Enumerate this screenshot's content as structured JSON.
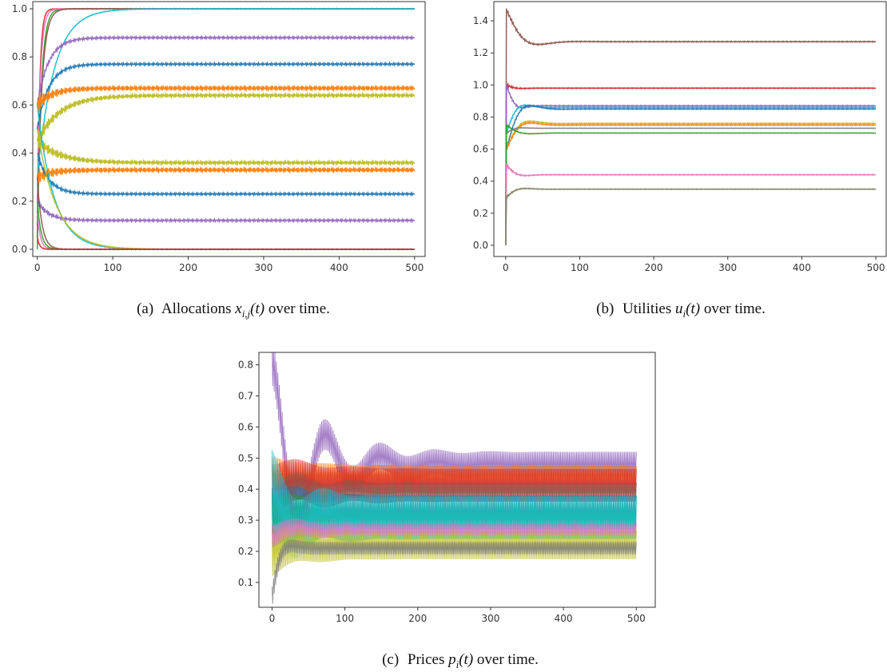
{
  "colors": [
    "#1f77b4",
    "#ff7f0e",
    "#2ca02c",
    "#d62728",
    "#9467bd",
    "#8c564b",
    "#e377c2",
    "#7f7f7f",
    "#bcbd22",
    "#17becf"
  ],
  "chart_data": [
    {
      "type": "line",
      "caption": "(a) Allocations x_{i,j}(t) over time.",
      "caption_parts": {
        "label": "(a)",
        "prefix": "Allocations ",
        "math_base": "x",
        "math_sub": "i,j",
        "math_arg": "(t)",
        "suffix": " over time."
      },
      "xlim": [
        -6,
        514
      ],
      "ylim": [
        -0.03,
        1.03
      ],
      "xticks": [
        0,
        100,
        200,
        300,
        400,
        500
      ],
      "yticks": [
        0.0,
        0.2,
        0.4,
        0.6,
        0.8,
        1.0
      ],
      "xtick_labels": [
        "0",
        "100",
        "200",
        "300",
        "400",
        "500"
      ],
      "ytick_labels": [
        "0.0",
        "0.2",
        "0.4",
        "0.6",
        "0.8",
        "1.0"
      ],
      "series": [
        {
          "color": "#d62728",
          "start": 0.05,
          "final": 1.0,
          "tau": 3,
          "osc": 0.003
        },
        {
          "color": "#2ca02c",
          "start": 0.0,
          "final": 1.0,
          "tau": 5,
          "osc": 0.003
        },
        {
          "color": "#e377c2",
          "start": 0.2,
          "final": 1.0,
          "tau": 4,
          "osc": 0.003
        },
        {
          "color": "#8c564b",
          "start": 0.1,
          "final": 1.0,
          "tau": 6,
          "osc": 0.003
        },
        {
          "color": "#17becf",
          "start": 0.3,
          "final": 1.0,
          "tau": 22,
          "osc": 0.003
        },
        {
          "color": "#9467bd",
          "start": 0.6,
          "final": 0.88,
          "tau": 15,
          "osc": 0.012
        },
        {
          "color": "#1f77b4",
          "start": 0.5,
          "final": 0.77,
          "tau": 15,
          "osc": 0.012
        },
        {
          "color": "#ff7f0e",
          "start": 0.6,
          "final": 0.67,
          "tau": 20,
          "osc": 0.025
        },
        {
          "color": "#bcbd22",
          "start": 0.45,
          "final": 0.64,
          "tau": 30,
          "osc": 0.02
        },
        {
          "color": "#bcbd22",
          "start": 0.45,
          "final": 0.36,
          "tau": 30,
          "osc": 0.02
        },
        {
          "color": "#ff7f0e",
          "start": 0.3,
          "final": 0.33,
          "tau": 20,
          "osc": 0.025
        },
        {
          "color": "#1f77b4",
          "start": 0.4,
          "final": 0.23,
          "tau": 15,
          "osc": 0.012
        },
        {
          "color": "#9467bd",
          "start": 0.2,
          "final": 0.12,
          "tau": 15,
          "osc": 0.012
        },
        {
          "color": "#17becf",
          "start": 0.6,
          "final": 0.0,
          "tau": 22,
          "osc": 0.003
        },
        {
          "color": "#bcbd22",
          "start": 0.5,
          "final": 0.0,
          "tau": 25,
          "osc": 0.003
        },
        {
          "color": "#8c564b",
          "start": 0.3,
          "final": 0.0,
          "tau": 6,
          "osc": 0.003
        },
        {
          "color": "#e377c2",
          "start": 0.15,
          "final": 0.0,
          "tau": 4,
          "osc": 0.003
        },
        {
          "color": "#2ca02c",
          "start": 0.2,
          "final": 0.0,
          "tau": 5,
          "osc": 0.003
        },
        {
          "color": "#d62728",
          "start": 0.05,
          "final": 0.0,
          "tau": 3,
          "osc": 0.003
        }
      ]
    },
    {
      "type": "line",
      "caption": "(b) Utilities u_i(t) over time.",
      "caption_parts": {
        "label": "(b)",
        "prefix": "Utilities ",
        "math_base": "u",
        "math_sub": "i",
        "math_arg": "(t)",
        "suffix": " over time."
      },
      "xlim": [
        -16,
        514
      ],
      "ylim": [
        -0.07,
        1.52
      ],
      "xticks": [
        0,
        100,
        200,
        300,
        400,
        500
      ],
      "yticks": [
        0.0,
        0.2,
        0.4,
        0.6,
        0.8,
        1.0,
        1.2,
        1.4
      ],
      "xtick_labels": [
        "0",
        "100",
        "200",
        "300",
        "400",
        "500"
      ],
      "ytick_labels": [
        "0.0",
        "0.2",
        "0.4",
        "0.6",
        "0.8",
        "1.0",
        "1.2",
        "1.4"
      ],
      "series": [
        {
          "color": "#8c564b",
          "start": 0.0,
          "peak": 1.47,
          "final": 1.27,
          "tau": 20,
          "osc": 0.01
        },
        {
          "color": "#d62728",
          "start": 0.0,
          "peak": 1.0,
          "final": 0.98,
          "tau": 10,
          "osc": 0.008
        },
        {
          "color": "#9467bd",
          "start": 0.0,
          "peak": 1.0,
          "final": 0.87,
          "tau": 10,
          "osc": 0.01
        },
        {
          "color": "#17becf",
          "start": 0.0,
          "peak": 0.7,
          "final": 0.86,
          "tau": 12,
          "osc": 0.008
        },
        {
          "color": "#1f77b4",
          "start": 0.0,
          "peak": 0.6,
          "final": 0.85,
          "tau": 15,
          "osc": 0.008
        },
        {
          "color": "#bcbd22",
          "start": 0.0,
          "peak": 0.6,
          "final": 0.76,
          "tau": 15,
          "osc": 0.008
        },
        {
          "color": "#ff7f0e",
          "start": 0.0,
          "peak": 0.6,
          "final": 0.75,
          "tau": 15,
          "osc": 0.008
        },
        {
          "color": "#7f7f7f",
          "start": 0.0,
          "peak": 0.7,
          "final": 0.73,
          "tau": 10,
          "osc": 0.004
        },
        {
          "color": "#2ca02c",
          "start": 0.0,
          "peak": 0.75,
          "final": 0.7,
          "tau": 15,
          "osc": 0.004
        },
        {
          "color": "#e377c2",
          "start": 0.0,
          "peak": 0.5,
          "final": 0.44,
          "tau": 12,
          "osc": 0.008
        },
        {
          "color": "#bcbd22",
          "start": 0.0,
          "peak": 0.3,
          "final": 0.35,
          "tau": 12,
          "osc": 0.006
        },
        {
          "color": "#7f7f7f",
          "start": 0.0,
          "peak": 0.3,
          "final": 0.35,
          "tau": 12,
          "osc": 0.004
        }
      ]
    },
    {
      "type": "line",
      "caption": "(c) Prices p_i(t) over time.",
      "caption_parts": {
        "label": "(c)",
        "prefix": "Prices ",
        "math_base": "p",
        "math_sub": "i",
        "math_arg": "(t)",
        "suffix": " over time."
      },
      "xlim": [
        -18,
        526
      ],
      "ylim": [
        0.02,
        0.84
      ],
      "xticks": [
        0,
        100,
        200,
        300,
        400,
        500
      ],
      "yticks": [
        0.1,
        0.2,
        0.3,
        0.4,
        0.5,
        0.6,
        0.7,
        0.8
      ],
      "xtick_labels": [
        "0",
        "100",
        "200",
        "300",
        "400",
        "500"
      ],
      "ytick_labels": [
        "0.1",
        "0.2",
        "0.3",
        "0.4",
        "0.5",
        "0.6",
        "0.7",
        "0.8"
      ],
      "series": [
        {
          "color": "#9467bd",
          "start": 0.81,
          "center": 0.48,
          "amp": 0.04,
          "tau": 60
        },
        {
          "color": "#ff7f0e",
          "start": 0.45,
          "center": 0.445,
          "amp": 0.03,
          "tau": 60
        },
        {
          "color": "#d62728",
          "start": 0.4,
          "center": 0.42,
          "amp": 0.045,
          "tau": 60
        },
        {
          "color": "#8c564b",
          "start": 0.35,
          "center": 0.39,
          "amp": 0.03,
          "tau": 60
        },
        {
          "color": "#1f77b4",
          "start": 0.3,
          "center": 0.33,
          "amp": 0.05,
          "tau": 40
        },
        {
          "color": "#2ca02c",
          "start": 0.3,
          "center": 0.31,
          "amp": 0.05,
          "tau": 40
        },
        {
          "color": "#17becf",
          "start": 0.4,
          "center": 0.31,
          "amp": 0.07,
          "tau": 40
        },
        {
          "color": "#bcbd22",
          "start": 0.2,
          "center": 0.22,
          "amp": 0.045,
          "tau": 40
        },
        {
          "color": "#7f7f7f",
          "start": 0.05,
          "center": 0.21,
          "amp": 0.02,
          "tau": 10
        },
        {
          "color": "#e377c2",
          "start": 0.25,
          "center": 0.27,
          "amp": 0.02,
          "tau": 40
        }
      ]
    }
  ]
}
